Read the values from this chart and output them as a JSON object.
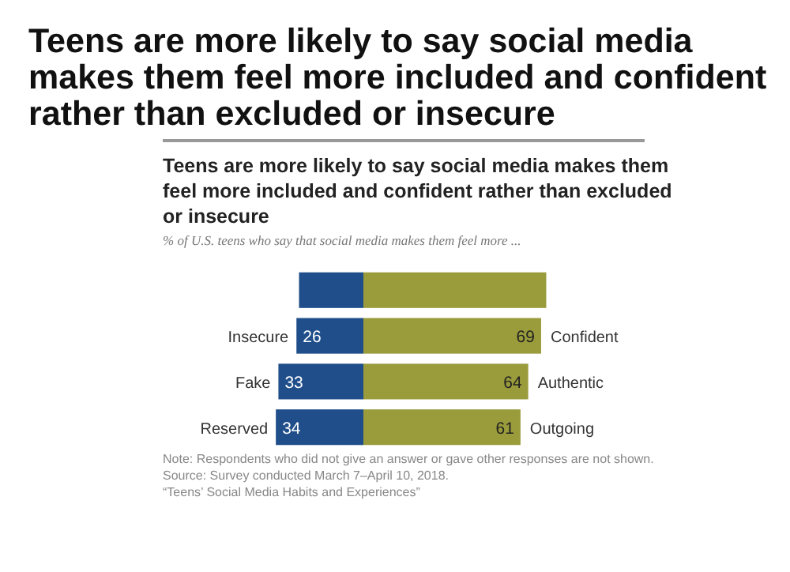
{
  "chart_data": {
    "type": "bar",
    "orientation": "horizontal",
    "stacked": true,
    "title": "Teens are more likely to say social media makes them feel more included and confident rather than excluded or insecure",
    "subtitle": "% of U.S. teens who say that social media makes them feel more ...",
    "categories": [
      null,
      "Insecure",
      "Fake",
      "Reserved"
    ],
    "series": [
      {
        "color": "#1f4e8a",
        "values": [
          -25,
          -26,
          -33,
          -34
        ]
      },
      {
        "color": "#9a9c3c",
        "values": [
          71,
          69,
          64,
          61
        ],
        "value_labels": [
          null,
          "69",
          "64",
          "61"
        ]
      }
    ],
    "annotations": [
      "Teens are more likely to say social media makes them feel more included and confident rather than excluded or insecure",
      {
        "text": "26",
        "x": -26,
        "y": "Insecure"
      },
      {
        "text": "33",
        "x": -33,
        "y": "Fake"
      },
      {
        "text": "34",
        "x": -34,
        "y": "Reserved"
      },
      {
        "text": "Confident",
        "x": 69,
        "y": "Insecure"
      },
      {
        "text": "Authentic",
        "x": 64,
        "y": "Fake"
      },
      {
        "text": "Outgoing",
        "x": 61,
        "y": "Reserved"
      },
      "Note: Respondents who did not give an answer or gave other responses are not shown.",
      "Source: Survey conducted March 7–April 10, 2018.",
      "“Teens’ Social Media Habits and Experiences”"
    ]
  }
}
